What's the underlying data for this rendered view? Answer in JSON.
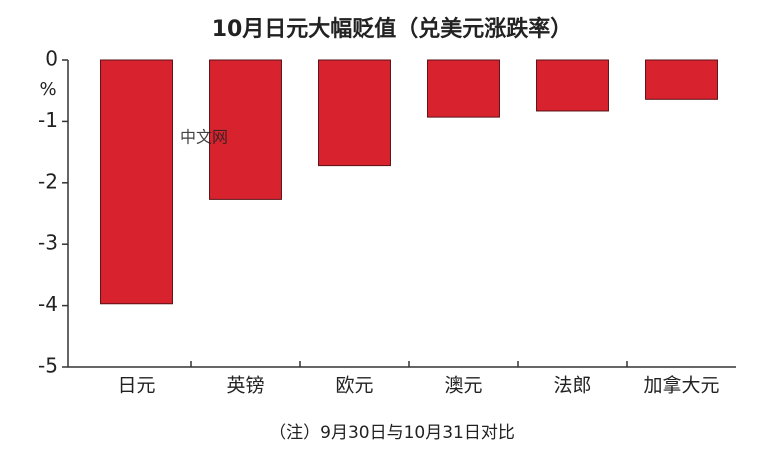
{
  "chart_data": {
    "type": "bar",
    "title": "10月日元大幅贬值（兑美元涨跌率）",
    "y_unit": "%",
    "categories": [
      "日元",
      "英镑",
      "欧元",
      "澳元",
      "法郎",
      "加拿大元"
    ],
    "values": [
      -3.97,
      -2.27,
      -1.72,
      -0.93,
      -0.83,
      -0.64
    ],
    "color": "#d8232f",
    "ylim": [
      -5,
      0
    ],
    "yticks": [
      0,
      -1,
      -2,
      -3,
      -4,
      -5
    ],
    "note": "（注）9月30日与10月31日对比",
    "watermark": "中文网"
  }
}
